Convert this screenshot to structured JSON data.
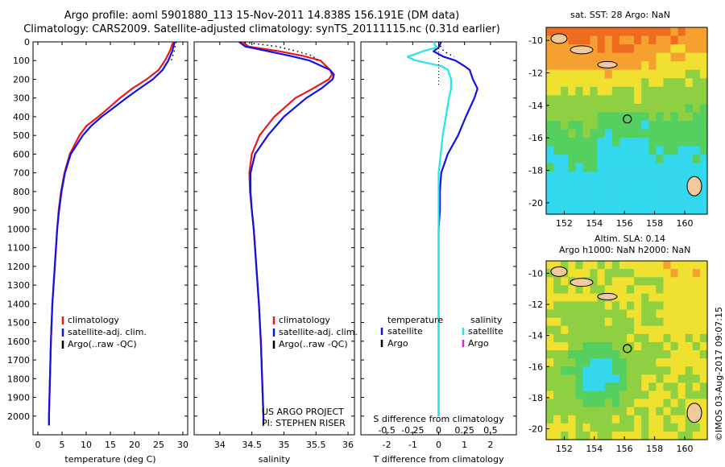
{
  "header": {
    "line1": "Argo profile: aoml 5901880_113 15-Nov-2011 14.838S 156.191E (DM data)",
    "line2": "Climatology: CARS2009. Satellite-adjusted climatology: synTS_20111115.nc (0.31d earlier)"
  },
  "colors": {
    "climatology": "#e41a1c",
    "satellite": "#1010ee",
    "satellite_salinity_diff": "#22e5ee",
    "argo": "#000000",
    "argo_salinity_diff": "#dd22dd"
  },
  "chart_data": [
    {
      "type": "line",
      "id": "temperature",
      "xlabel": "temperature (deg C)",
      "ylabel": "",
      "xlim": [
        -1,
        31
      ],
      "ylim": [
        2100,
        0
      ],
      "xticks": [
        0,
        5,
        10,
        15,
        20,
        25,
        30
      ],
      "yticks": [
        0,
        100,
        200,
        300,
        400,
        500,
        600,
        700,
        800,
        900,
        1000,
        1100,
        1200,
        1300,
        1400,
        1500,
        1600,
        1700,
        1800,
        1900,
        2000
      ],
      "depth": [
        0,
        50,
        100,
        150,
        200,
        250,
        300,
        350,
        400,
        450,
        500,
        600,
        700,
        800,
        900,
        1000,
        1200,
        1400,
        1600,
        1800,
        2000,
        2050
      ],
      "series": [
        {
          "name": "climatology",
          "values": [
            28.0,
            27.3,
            26.3,
            25.0,
            22.5,
            19.5,
            17.0,
            14.8,
            12.5,
            10.0,
            8.6,
            6.6,
            5.5,
            4.8,
            4.3,
            4.0,
            3.5,
            3.0,
            2.7,
            2.5,
            2.3,
            2.3
          ]
        },
        {
          "name": "satellite-adj. clim.",
          "values": [
            28.3,
            27.8,
            27.0,
            25.8,
            23.8,
            21.0,
            18.3,
            15.8,
            13.2,
            11.0,
            9.3,
            6.8,
            5.6,
            4.9,
            4.4,
            4.0,
            3.5,
            3.0,
            2.7,
            2.5,
            2.3,
            2.3
          ]
        },
        {
          "name": "Argo(..raw -QC)",
          "values": [
            28.6,
            28.2,
            27.6,
            null,
            null,
            null,
            null,
            null,
            null,
            null,
            null,
            null,
            null,
            null,
            null,
            null,
            null,
            null,
            null,
            null,
            null,
            null
          ]
        }
      ],
      "legend": [
        "climatology",
        "satellite-adj. clim.",
        "Argo(..raw -QC)"
      ]
    },
    {
      "type": "line",
      "id": "salinity",
      "xlabel": "salinity",
      "xlim": [
        33.6,
        36.1
      ],
      "ylim": [
        2100,
        0
      ],
      "xticks": [
        34,
        34.5,
        35,
        35.5,
        36
      ],
      "xticklabels": [
        "34",
        "34.5",
        "35",
        "35.5",
        "36"
      ],
      "depth": [
        0,
        25,
        50,
        75,
        100,
        150,
        175,
        200,
        250,
        300,
        400,
        500,
        600,
        700,
        800,
        900,
        1000,
        1200,
        1400,
        1600,
        1800,
        2000,
        2050
      ],
      "series": [
        {
          "name": "climatology",
          "values": [
            34.35,
            34.45,
            34.92,
            35.3,
            35.57,
            35.72,
            35.75,
            35.7,
            35.45,
            35.18,
            34.85,
            34.62,
            34.5,
            34.46,
            34.47,
            34.5,
            34.53,
            34.57,
            34.61,
            34.64,
            34.66,
            34.68,
            34.68
          ]
        },
        {
          "name": "satellite-adj. clim.",
          "values": [
            34.3,
            34.4,
            34.75,
            35.1,
            35.4,
            35.72,
            35.78,
            35.76,
            35.58,
            35.35,
            35.0,
            34.75,
            34.55,
            34.48,
            34.48,
            34.5,
            34.53,
            34.57,
            34.61,
            34.64,
            34.66,
            34.68,
            34.68
          ]
        },
        {
          "name": "Argo(..raw -QC)",
          "values": [
            34.32,
            34.9,
            35.2,
            35.45,
            35.52,
            null,
            null,
            null,
            null,
            null,
            null,
            null,
            null,
            null,
            null,
            null,
            null,
            null,
            null,
            null,
            null,
            null,
            null
          ]
        }
      ],
      "legend": [
        "climatology",
        "satellite-adj. clim.",
        "Argo(..raw -QC)"
      ],
      "annotation": [
        "US ARGO PROJECT",
        "PI: STEPHEN RISER"
      ]
    },
    {
      "type": "line",
      "id": "differences",
      "xlabel": "T difference from climatology",
      "top_xlabel": "S difference from climatology",
      "xlim": [
        -3,
        3
      ],
      "ylim": [
        2100,
        0
      ],
      "xticks": [
        -2,
        -1,
        0,
        1,
        2
      ],
      "top_xticks": [
        -0.5,
        -0.25,
        0,
        0.25,
        0.5
      ],
      "top_xticklabels": [
        "-0.5",
        "-0.25",
        "0",
        "0.25",
        "0.5"
      ],
      "depth": [
        0,
        30,
        50,
        80,
        100,
        130,
        150,
        200,
        250,
        300,
        400,
        500,
        600,
        700,
        800,
        900,
        1000,
        1200,
        1500,
        2000
      ],
      "series": [
        {
          "name": "temperature satellite",
          "values": [
            0.1,
            0.0,
            -0.2,
            0.2,
            0.65,
            1.0,
            1.2,
            1.32,
            1.5,
            1.38,
            1.05,
            0.75,
            0.35,
            0.1,
            0.05,
            0.05,
            0.0,
            0.0,
            0.0,
            0.0
          ]
        },
        {
          "name": "salinity satellite (S diff)",
          "values": [
            -0.05,
            -0.02,
            -0.15,
            -0.3,
            -0.22,
            0.03,
            0.09,
            0.12,
            0.12,
            0.1,
            0.07,
            0.04,
            0.02,
            0.0,
            0.0,
            0.0,
            0.0,
            0.0,
            0.0,
            0.0
          ]
        },
        {
          "name": "temperature Argo",
          "values": [
            0.0,
            0.1,
            0.2,
            0.6,
            null,
            null,
            null,
            null,
            null,
            null,
            null,
            null,
            null,
            null,
            null,
            null,
            null,
            null,
            null,
            null
          ]
        }
      ],
      "legend": {
        "temperature_title": "temperature",
        "salinity_title": "salinity",
        "satellite": "satellite",
        "argo": "Argo"
      }
    }
  ],
  "maps": {
    "sst": {
      "title": "sat. SST: 28 Argo: NaN",
      "xticks": [
        "152",
        "154",
        "156",
        "158",
        "160"
      ],
      "yticks": [
        "-10",
        "-12",
        "-14",
        "-16",
        "-18",
        "-20"
      ]
    },
    "sla": {
      "title_line1": "Altim. SLA: 0.14",
      "title_line2": "Argo h1000: NaN h2000: NaN",
      "xticks": [
        "152",
        "154",
        "156",
        "158",
        "160"
      ],
      "yticks": [
        "-10",
        "-12",
        "-14",
        "-16",
        "-18",
        "-20"
      ]
    },
    "profile_marker": {
      "lon": 156.191,
      "lat": -14.838
    }
  },
  "credit": "©IMOS 03-Aug-2017 09:07:15"
}
